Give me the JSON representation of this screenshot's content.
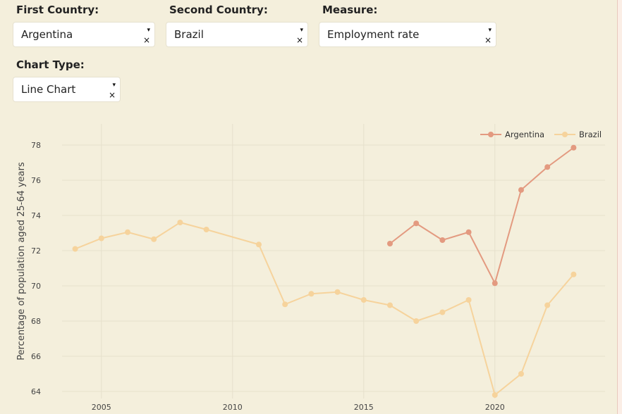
{
  "controls": {
    "first_country_label": "First Country:",
    "first_country_value": "Argentina",
    "second_country_label": "Second Country:",
    "second_country_value": "Brazil",
    "measure_label": "Measure:",
    "measure_value": "Employment rate",
    "chart_type_label": "Chart Type:",
    "chart_type_value": "Line Chart",
    "caret_icon": "▾",
    "clear_icon": "×"
  },
  "colors": {
    "argentina": "#e39a80",
    "brazil": "#f6d39c",
    "grid": "#e6e0cc"
  },
  "chart_data": {
    "type": "line",
    "title": "",
    "xlabel": "",
    "ylabel": "Percentage of population aged 25-64 years",
    "xlim": [
      2003.5,
      2024.2
    ],
    "ylim": [
      63.6,
      79.2
    ],
    "xticks": [
      2005,
      2010,
      2015,
      2020
    ],
    "yticks": [
      64,
      66,
      68,
      70,
      72,
      74,
      76,
      78
    ],
    "grid": true,
    "legend_position": "top-right",
    "series": [
      {
        "name": "Argentina",
        "x": [
          2016,
          2017,
          2018,
          2019,
          2020,
          2021,
          2022,
          2023
        ],
        "values": [
          72.4,
          73.55,
          72.6,
          73.05,
          70.15,
          75.45,
          76.75,
          77.85
        ]
      },
      {
        "name": "Brazil",
        "x": [
          2004,
          2005,
          2006,
          2007,
          2008,
          2009,
          2011,
          2012,
          2013,
          2014,
          2015,
          2016,
          2017,
          2018,
          2019,
          2020,
          2021,
          2022,
          2023
        ],
        "values": [
          72.1,
          72.7,
          73.05,
          72.65,
          73.6,
          73.2,
          72.35,
          68.95,
          69.55,
          69.65,
          69.2,
          68.9,
          68.0,
          68.5,
          69.2,
          63.8,
          65.0,
          68.9,
          70.65
        ]
      }
    ]
  }
}
